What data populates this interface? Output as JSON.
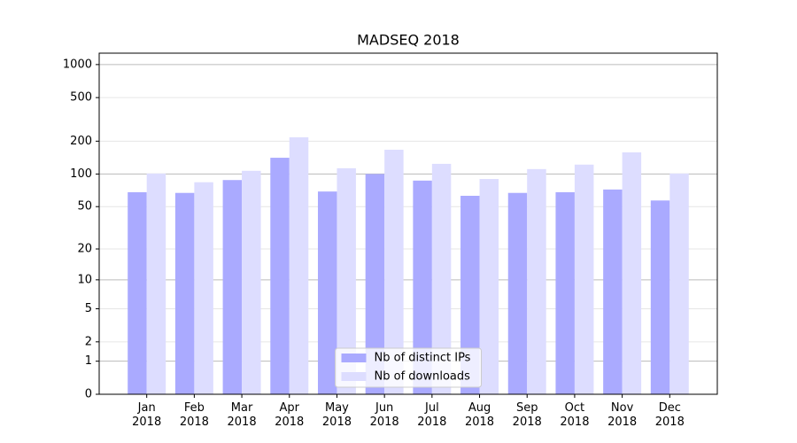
{
  "chart_data": {
    "type": "bar",
    "title": "MADSEQ 2018",
    "categories": [
      "Jan 2018",
      "Feb 2018",
      "Mar 2018",
      "Apr 2018",
      "May 2018",
      "Jun 2018",
      "Jul 2018",
      "Aug 2018",
      "Sep 2018",
      "Oct 2018",
      "Nov 2018",
      "Dec 2018"
    ],
    "series": [
      {
        "name": "Nb of distinct IPs",
        "color": "#aaaaff",
        "values": [
          68,
          67,
          88,
          141,
          69,
          100,
          87,
          63,
          67,
          68,
          72,
          57
        ]
      },
      {
        "name": "Nb of downloads",
        "color": "#ddddff",
        "values": [
          101,
          84,
          107,
          217,
          113,
          167,
          124,
          90,
          111,
          122,
          158,
          101
        ]
      }
    ],
    "yscale": "log1p",
    "ylim": [
      0,
      1270
    ],
    "yticks": [
      0,
      1,
      2,
      5,
      10,
      20,
      50,
      100,
      200,
      500,
      1000
    ],
    "grid": true,
    "legend": "lower center"
  }
}
